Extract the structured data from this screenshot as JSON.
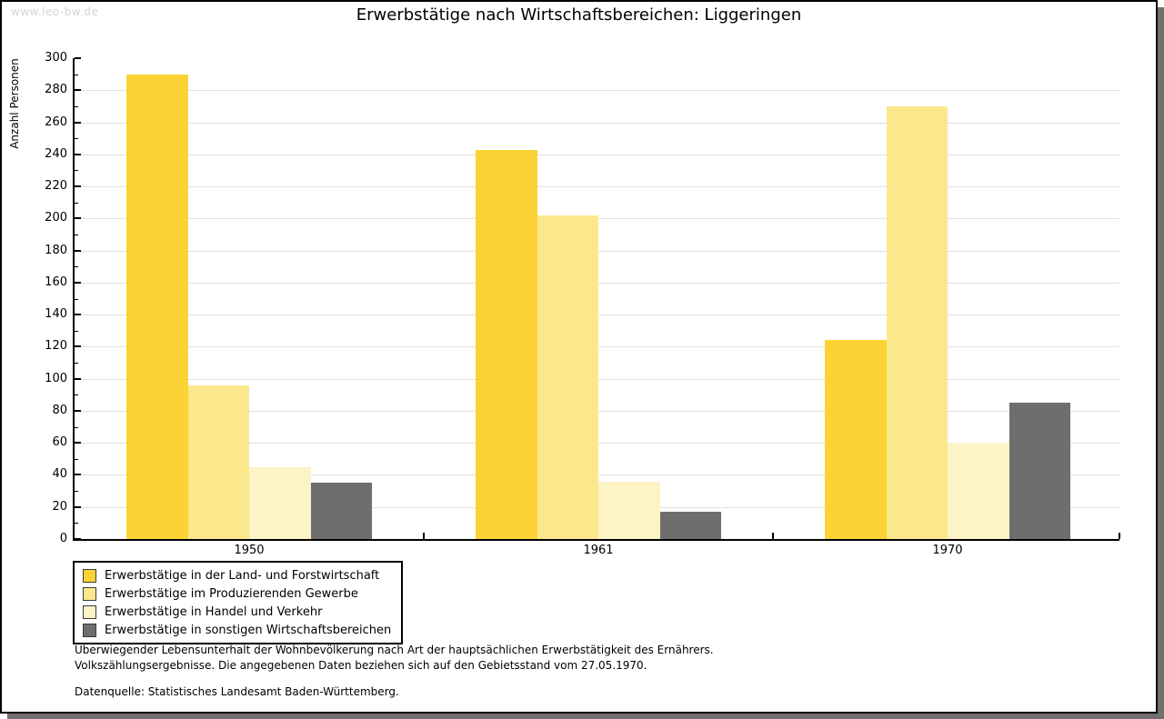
{
  "watermark": "www.leo-bw.de",
  "chart_data": {
    "type": "bar",
    "title": "Erwerbstätige nach Wirtschaftsbereichen: Liggeringen",
    "ylabel": "Anzahl Personen",
    "xlabel": "",
    "categories": [
      "1950",
      "1961",
      "1970"
    ],
    "series": [
      {
        "name": "Erwerbstätige in der Land- und Forstwirtschaft",
        "color": "#FBD335",
        "values": [
          290,
          243,
          124
        ]
      },
      {
        "name": "Erwerbstätige im Produzierenden Gewerbe",
        "color": "#FBE88C",
        "values": [
          96,
          202,
          270
        ]
      },
      {
        "name": "Erwerbstätige in Handel und Verkehr",
        "color": "#FCF3C6",
        "values": [
          45,
          36,
          60
        ]
      },
      {
        "name": "Erwerbstätige in sonstigen Wirtschaftsbereichen",
        "color": "#6E6E6E",
        "values": [
          35,
          17,
          85
        ]
      }
    ],
    "ylim": [
      0,
      300
    ],
    "ytick_step": 20,
    "ytick_minor_step": 10,
    "grid": "horizontal",
    "legend_position": "bottom-left"
  },
  "notes": [
    "Überwiegender Lebensunterhalt der Wohnbevölkerung nach Art der hauptsächlichen Erwerbstätigkeit des Ernährers.",
    "Volkszählungsergebnisse. Die angegebenen Daten beziehen sich auf den Gebietsstand vom 27.05.1970."
  ],
  "source": "Datenquelle: Statistisches Landesamt Baden-Württemberg.",
  "colors": {
    "grid": "#E0E0E0",
    "axis": "#000000",
    "watermark": "#D6D6D6",
    "shadow": "#707070",
    "background": "#FFFFFF"
  }
}
